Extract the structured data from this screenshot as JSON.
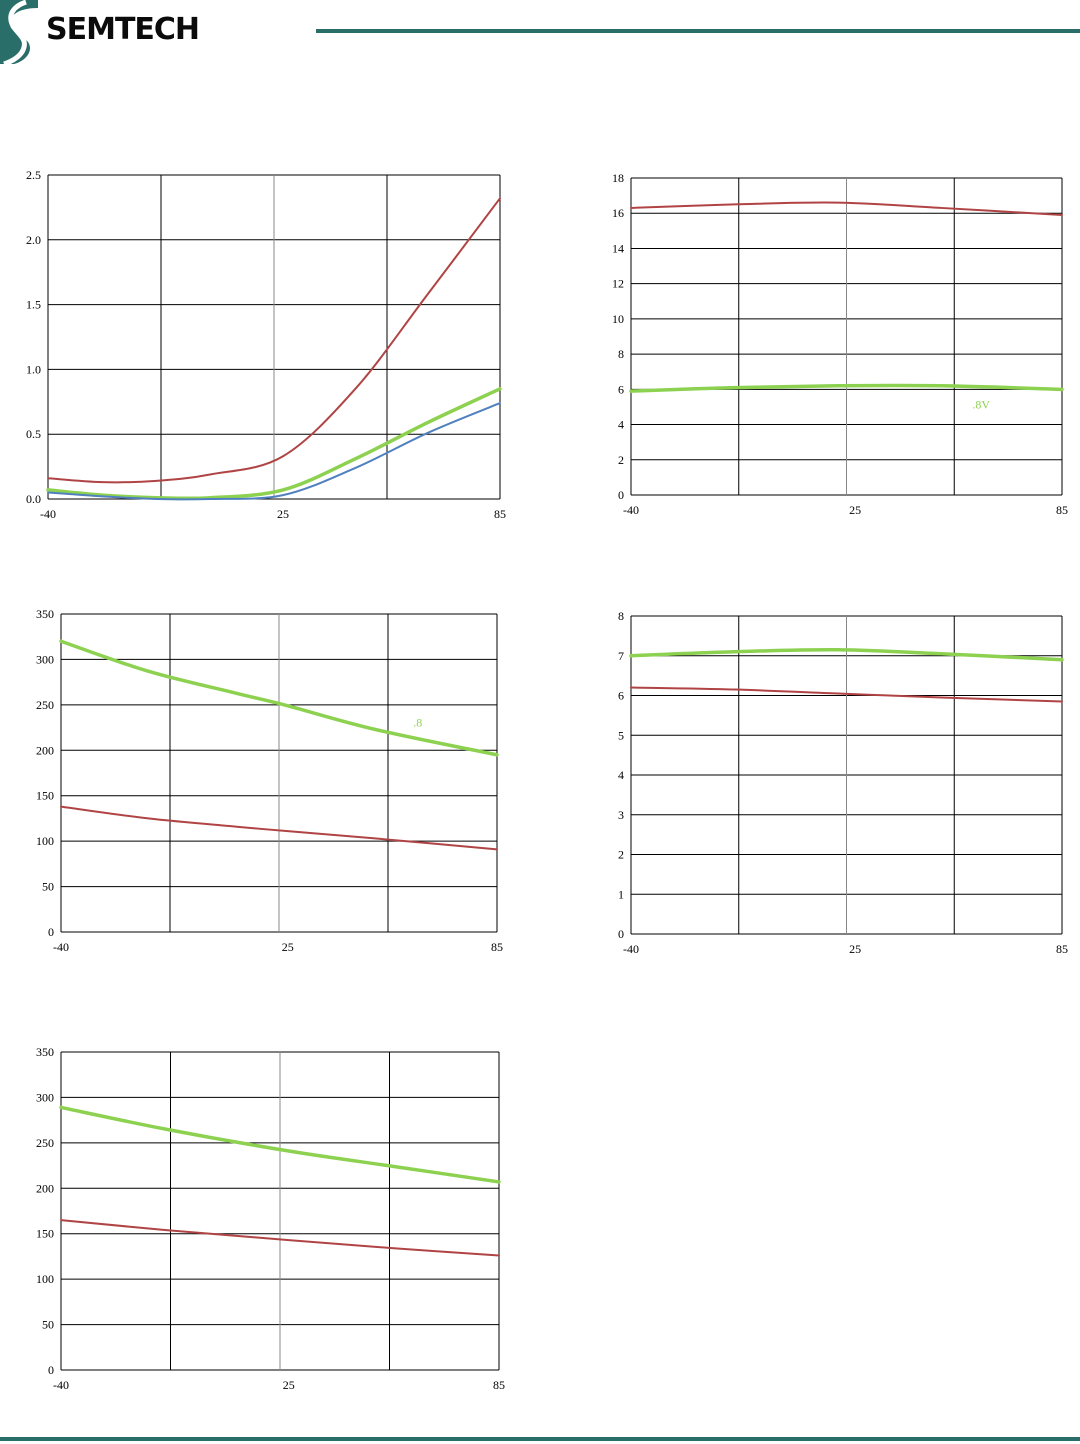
{
  "header": {
    "logo_text": "SEMTECH",
    "accent_color": "#2a6e6a"
  },
  "chart_data": [
    {
      "type": "line",
      "x": [
        -40,
        -25,
        -10,
        5,
        25,
        45,
        65,
        85
      ],
      "xticks": [
        "-40",
        "25",
        "85"
      ],
      "xlim": [
        -40,
        85
      ],
      "ylim": [
        0,
        2.5
      ],
      "yticks": [
        "0.0",
        "0.5",
        "1.0",
        "1.5",
        "2.0",
        "2.5"
      ],
      "grid": true,
      "series": [
        {
          "color": "#b04444",
          "width": 2,
          "values": [
            0.16,
            0.13,
            0.14,
            0.19,
            0.33,
            0.85,
            1.58,
            2.32
          ]
        },
        {
          "color": "#8dd150",
          "width": 3.5,
          "values": [
            0.07,
            0.03,
            0.01,
            0.01,
            0.07,
            0.31,
            0.59,
            0.85
          ]
        },
        {
          "color": "#5080c0",
          "width": 2,
          "values": [
            0.05,
            0.02,
            0.0,
            0.0,
            0.03,
            0.24,
            0.51,
            0.74
          ]
        }
      ],
      "annotations": []
    },
    {
      "type": "line",
      "x": [
        -40,
        -10,
        20,
        50,
        85
      ],
      "xticks": [
        "-40",
        "25",
        "85"
      ],
      "xlim": [
        -40,
        85
      ],
      "ylim": [
        0,
        18
      ],
      "yticks": [
        "0",
        "2",
        "4",
        "6",
        "8",
        "10",
        "12",
        "14",
        "16",
        "18"
      ],
      "grid": true,
      "series": [
        {
          "color": "#b04444",
          "width": 2,
          "values": [
            16.3,
            16.5,
            16.6,
            16.3,
            15.9
          ]
        },
        {
          "color": "#8dd150",
          "width": 3.5,
          "values": [
            5.9,
            6.1,
            6.2,
            6.2,
            6.0
          ]
        }
      ],
      "annotations": [
        {
          "text": ".8V",
          "x": 59,
          "y": 4.9,
          "color": "#8dd150"
        }
      ]
    },
    {
      "type": "line",
      "x": [
        -40,
        -15,
        10,
        25,
        50,
        85
      ],
      "xticks": [
        "-40",
        "25",
        "85"
      ],
      "xlim": [
        -40,
        85
      ],
      "ylim": [
        0,
        350
      ],
      "yticks": [
        "0",
        "50",
        "100",
        "150",
        "200",
        "250",
        "300",
        "350"
      ],
      "grid": true,
      "series": [
        {
          "color": "#8dd150",
          "width": 3.5,
          "values": [
            320,
            287,
            263,
            249,
            223,
            195
          ]
        },
        {
          "color": "#b04444",
          "width": 2,
          "values": [
            138,
            125,
            116,
            111,
            103,
            91
          ]
        }
      ],
      "annotations": [
        {
          "text": ".8",
          "x": 61,
          "y": 226,
          "color": "#8dd150"
        }
      ]
    },
    {
      "type": "line",
      "x": [
        -40,
        -10,
        20,
        50,
        85
      ],
      "xticks": [
        "-40",
        "25",
        "85"
      ],
      "xlim": [
        -40,
        85
      ],
      "ylim": [
        0,
        8
      ],
      "yticks": [
        "0",
        "1",
        "2",
        "3",
        "4",
        "5",
        "6",
        "7",
        "8"
      ],
      "grid": true,
      "series": [
        {
          "color": "#8dd150",
          "width": 3.5,
          "values": [
            7.0,
            7.1,
            7.15,
            7.05,
            6.9
          ]
        },
        {
          "color": "#b04444",
          "width": 2,
          "values": [
            6.2,
            6.15,
            6.05,
            5.95,
            5.85
          ]
        }
      ],
      "annotations": []
    },
    {
      "type": "line",
      "x": [
        -40,
        -10,
        25,
        55,
        85
      ],
      "xticks": [
        "-40",
        "25",
        "85"
      ],
      "xlim": [
        -40,
        85
      ],
      "ylim": [
        0,
        350
      ],
      "yticks": [
        "0",
        "50",
        "100",
        "150",
        "200",
        "250",
        "300",
        "350"
      ],
      "grid": true,
      "series": [
        {
          "color": "#8dd150",
          "width": 3.5,
          "values": [
            289,
            265,
            241,
            224,
            207
          ]
        },
        {
          "color": "#b04444",
          "width": 2,
          "values": [
            165,
            154,
            143,
            134,
            126
          ]
        }
      ],
      "annotations": []
    }
  ]
}
